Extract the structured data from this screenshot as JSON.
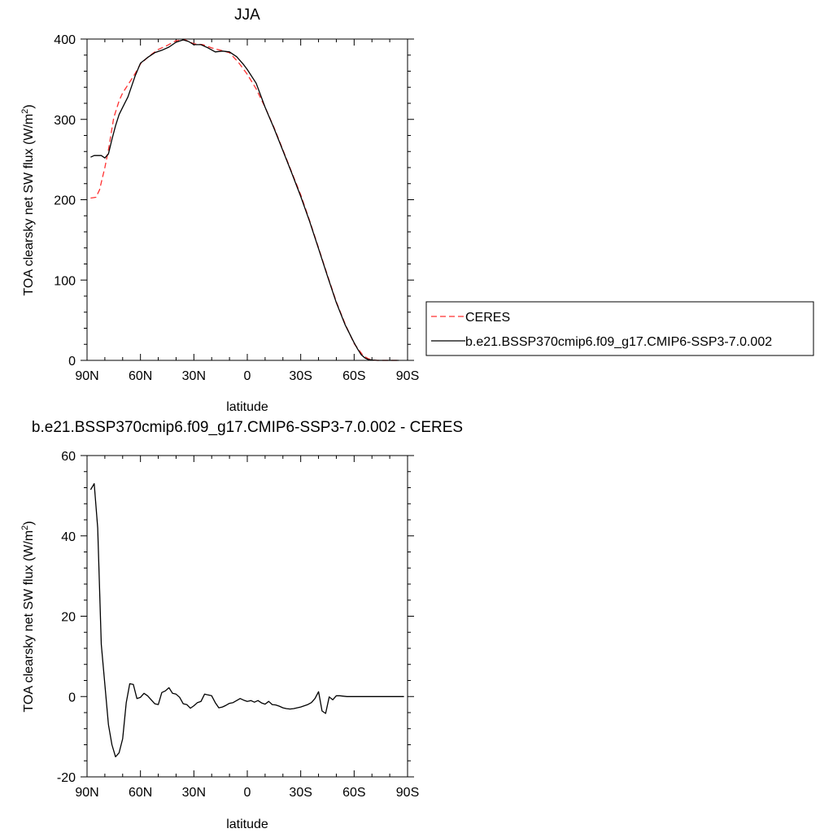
{
  "figure": {
    "top_title": "JJA",
    "bottom_title": "b.e21.BSSP370cmip6.f09_g17.CMIP6-SSP3-7.0.002 - CERES"
  },
  "colors": {
    "ceres": "#ff3030",
    "model": "#000000",
    "axis": "#000000",
    "background": "#ffffff"
  },
  "chart_data": [
    {
      "type": "line",
      "title": "JJA",
      "xlabel": "latitude",
      "ylabel_main": "TOA clearsky net SW flux (W/m",
      "ylabel_sup": "2",
      "ylabel_close": ")",
      "xlim": [
        90,
        -90
      ],
      "ylim": [
        0,
        400
      ],
      "x_ticks": [
        90,
        60,
        30,
        0,
        -30,
        -60,
        -90
      ],
      "x_tick_labels": [
        "90N",
        "60N",
        "30N",
        "0",
        "30S",
        "60S",
        "90S"
      ],
      "y_ticks": [
        0,
        100,
        200,
        300,
        400
      ],
      "y_tick_labels": [
        "0",
        "100",
        "200",
        "300",
        "400"
      ],
      "legend": {
        "placement": "right",
        "entries": [
          "CERES",
          "b.e21.BSSP370cmip6.f09_g17.CMIP6-SSP3-7.0.002"
        ]
      },
      "series": [
        {
          "name": "CERES",
          "style": "dashed",
          "x": [
            88,
            85,
            83,
            80,
            78,
            75,
            72,
            70,
            67,
            63,
            60,
            55,
            50,
            45,
            40,
            35,
            32,
            30,
            25,
            20,
            15,
            10,
            5,
            0,
            -5,
            -10,
            -15,
            -20,
            -25,
            -30,
            -35,
            -40,
            -45,
            -50,
            -55,
            -60,
            -63,
            -65,
            -68,
            -70,
            -73,
            -75,
            -78,
            -80,
            -83,
            -85
          ],
          "values": [
            202,
            203,
            212,
            240,
            262,
            302,
            323,
            333,
            343,
            357,
            369,
            379,
            387,
            392,
            398,
            399,
            396,
            394,
            393,
            389,
            386,
            383,
            371,
            356,
            338,
            315,
            290,
            262,
            234,
            206,
            174,
            140,
            106,
            73,
            45,
            21,
            12,
            6,
            2,
            0.5,
            0,
            0,
            0,
            0,
            0,
            0
          ]
        },
        {
          "name": "b.e21.BSSP370cmip6.f09_g17.CMIP6-SSP3-7.0.002",
          "style": "solid",
          "x": [
            88,
            86,
            84,
            82,
            80,
            78,
            76,
            74,
            72,
            70,
            67,
            63,
            60,
            56,
            52,
            48,
            44,
            40,
            36,
            33,
            30,
            26,
            22,
            18,
            14,
            10,
            6,
            2,
            0,
            -5,
            -10,
            -15,
            -20,
            -25,
            -30,
            -35,
            -40,
            -45,
            -50,
            -55,
            -60,
            -62,
            -64,
            -66,
            -68,
            -70,
            -73,
            -76,
            -80,
            -85
          ],
          "values": [
            253,
            255,
            255,
            255,
            252,
            257,
            275,
            292,
            306,
            315,
            328,
            354,
            370,
            377,
            383,
            386,
            390,
            396,
            399,
            397,
            393,
            393,
            389,
            384,
            385,
            384,
            378,
            368,
            362,
            345,
            315,
            289,
            261,
            233,
            204,
            173,
            139,
            105,
            72,
            44,
            22,
            14,
            7,
            3,
            1,
            0.5,
            0,
            0,
            0,
            0
          ]
        }
      ]
    },
    {
      "type": "line",
      "title": "b.e21.BSSP370cmip6.f09_g17.CMIP6-SSP3-7.0.002 - CERES",
      "xlabel": "latitude",
      "ylabel_main": "TOA clearsky net SW flux (W/m",
      "ylabel_sup": "2",
      "ylabel_close": ")",
      "xlim": [
        90,
        -90
      ],
      "ylim": [
        -20,
        60
      ],
      "x_ticks": [
        90,
        60,
        30,
        0,
        -30,
        -60,
        -90
      ],
      "x_tick_labels": [
        "90N",
        "60N",
        "30N",
        "0",
        "30S",
        "60S",
        "90S"
      ],
      "y_ticks": [
        -20,
        0,
        20,
        40,
        60
      ],
      "y_tick_labels": [
        "-20",
        "0",
        "20",
        "40",
        "60"
      ],
      "series": [
        {
          "style": "solid",
          "x": [
            88,
            86,
            84,
            82,
            80,
            78,
            76,
            74,
            72,
            70,
            68,
            66,
            64,
            62,
            60,
            58,
            56,
            54,
            52,
            50,
            48,
            46,
            44,
            42,
            40,
            38,
            36,
            34,
            32,
            30,
            28,
            26,
            24,
            22,
            20,
            18,
            16,
            14,
            12,
            10,
            8,
            6,
            4,
            2,
            0,
            -2,
            -4,
            -6,
            -8,
            -10,
            -12,
            -14,
            -16,
            -18,
            -20,
            -22,
            -24,
            -26,
            -28,
            -30,
            -32,
            -34,
            -36,
            -38,
            -40,
            -42,
            -44,
            -46,
            -48,
            -50,
            -52,
            -54,
            -56,
            -58,
            -60,
            -62,
            -64,
            -66,
            -68,
            -70,
            -72,
            -74,
            -76,
            -78,
            -80,
            -82,
            -84,
            -86,
            -88
          ],
          "values": [
            51.5,
            53,
            42,
            13,
            3,
            -7,
            -12,
            -15,
            -14,
            -10.5,
            -1.5,
            3.2,
            3,
            -0.5,
            -0.2,
            0.8,
            0.2,
            -0.8,
            -1.8,
            -2,
            1,
            1.4,
            2.2,
            0.8,
            0.6,
            -0.2,
            -1.8,
            -2,
            -2.9,
            -2.3,
            -1.5,
            -1.2,
            0.6,
            0.4,
            0.2,
            -1.5,
            -2.8,
            -2.6,
            -2.2,
            -1.7,
            -1.5,
            -1,
            -0.5,
            -0.9,
            -1.2,
            -1,
            -1.4,
            -1,
            -1.6,
            -1.9,
            -1.2,
            -2,
            -2.1,
            -2.4,
            -2.8,
            -3,
            -3.1,
            -3,
            -2.8,
            -2.6,
            -2.3,
            -2,
            -1.5,
            -0.5,
            1.2,
            -3.6,
            -4.2,
            -0.1,
            -0.8,
            0.2,
            0.2,
            0.1,
            0,
            0,
            0,
            0,
            0,
            0,
            0,
            0,
            0,
            0,
            0,
            0,
            0,
            0,
            0,
            0,
            0
          ]
        }
      ]
    }
  ]
}
